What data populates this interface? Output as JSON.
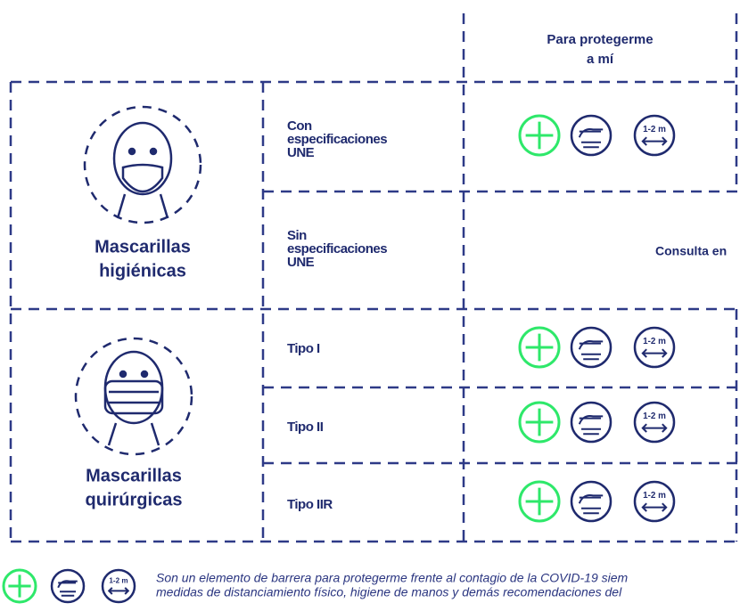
{
  "header": {
    "lines": [
      "Para protegerme",
      "a mí"
    ]
  },
  "groups": [
    {
      "lines": [
        "Mascarillas",
        "higiénicas"
      ]
    },
    {
      "lines": [
        "Mascarillas",
        "quirúrgicas"
      ]
    }
  ],
  "rows": [
    {
      "lines": [
        "Con",
        "especificaciones",
        "UNE"
      ]
    },
    {
      "lines": [
        "Sin",
        "especificaciones",
        "UNE"
      ]
    },
    {
      "lines": [
        "Tipo I"
      ]
    },
    {
      "lines": [
        "Tipo II"
      ]
    },
    {
      "lines": [
        "Tipo IIR"
      ]
    }
  ],
  "note": "Consulta en",
  "icon_distance_label": "1-2 m",
  "footer": {
    "lines": [
      "Son un elemento de barrera para protegerme frente al contagio de la COVID-19 siem",
      "medidas de distanciamiento físico, higiene de manos y demás recomendaciones del"
    ]
  }
}
